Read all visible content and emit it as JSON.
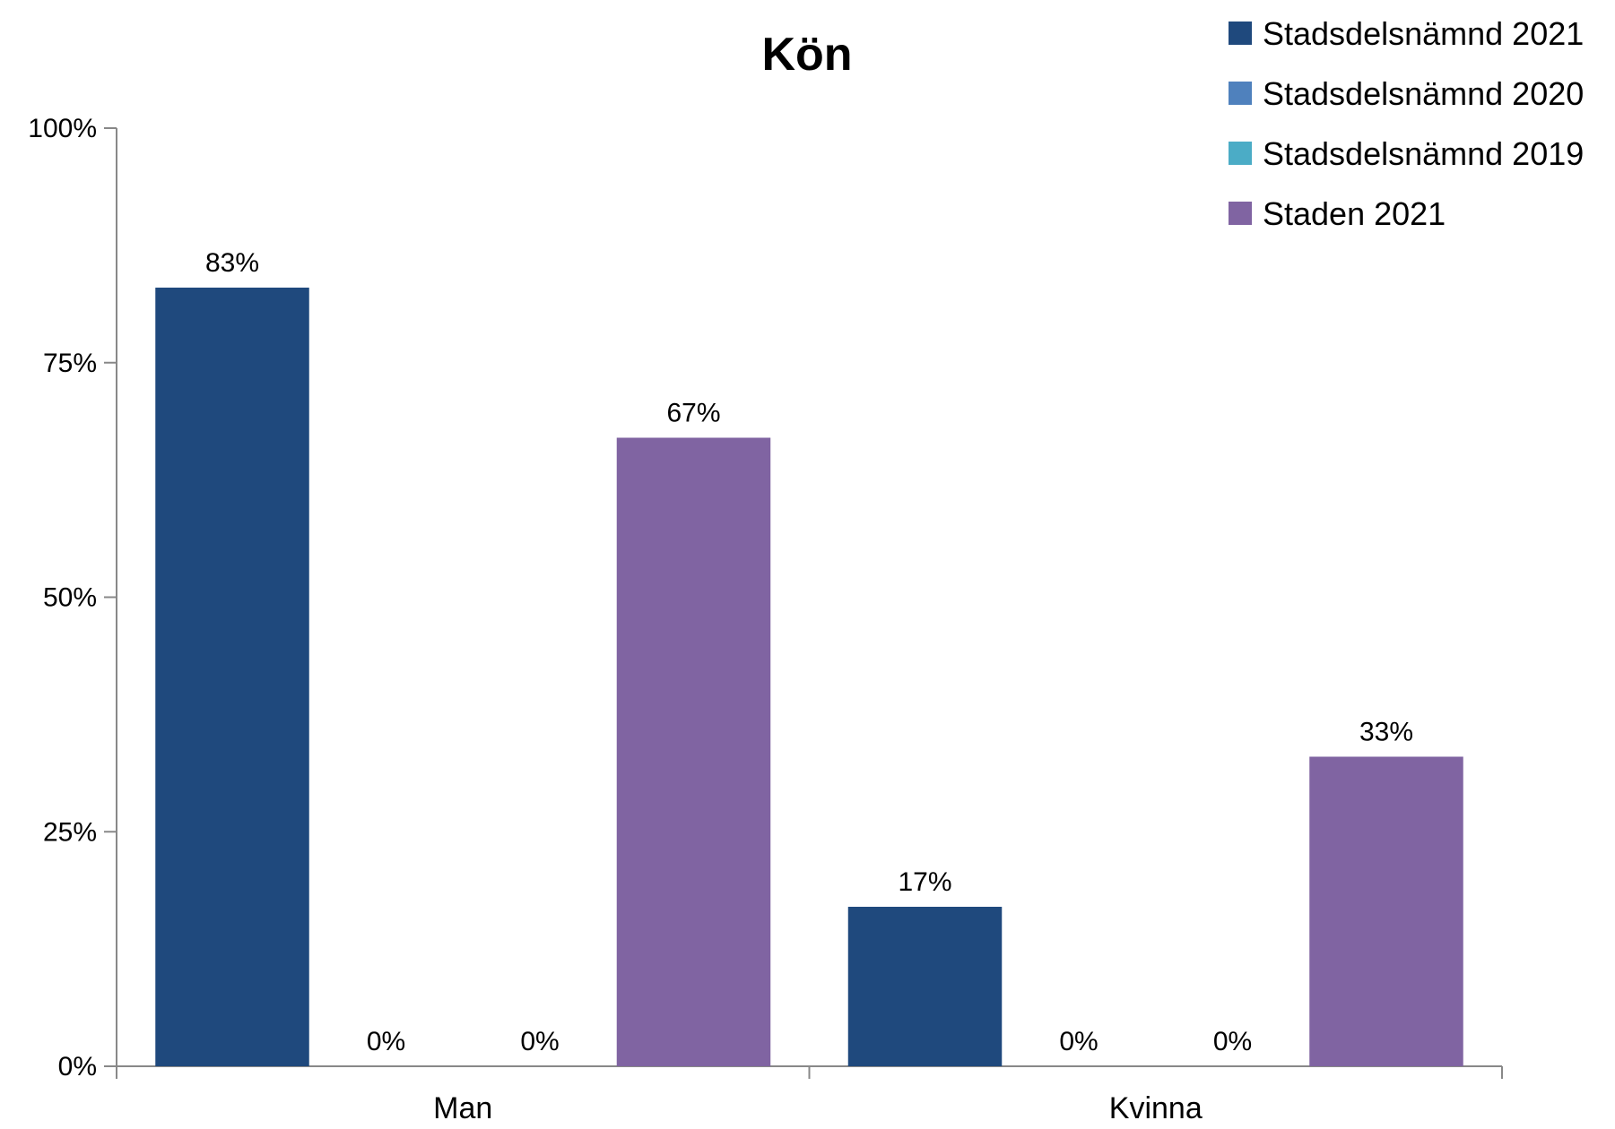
{
  "chart_data": {
    "type": "bar",
    "title": "Kön",
    "xlabel": "",
    "ylabel": "",
    "categories": [
      "Man",
      "Kvinna"
    ],
    "ylim": [
      0,
      100
    ],
    "yticks": [
      0,
      25,
      50,
      75,
      100
    ],
    "ytick_labels": [
      "0%",
      "25%",
      "50%",
      "75%",
      "100%"
    ],
    "grid": false,
    "legend_position": "top-right",
    "series": [
      {
        "name": "Stadsdelsnämnd 2021",
        "color": "#1F497D",
        "values": [
          83,
          17
        ],
        "labels": [
          "83%",
          "17%"
        ]
      },
      {
        "name": "Stadsdelsnämnd 2020",
        "color": "#4F81BD",
        "values": [
          0,
          0
        ],
        "labels": [
          "0%",
          "0%"
        ]
      },
      {
        "name": "Stadsdelsnämnd 2019",
        "color": "#4BACC6",
        "values": [
          0,
          0
        ],
        "labels": [
          "0%",
          "0%"
        ]
      },
      {
        "name": "Staden 2021",
        "color": "#8064A2",
        "values": [
          67,
          33
        ],
        "labels": [
          "67%",
          "33%"
        ]
      }
    ]
  }
}
